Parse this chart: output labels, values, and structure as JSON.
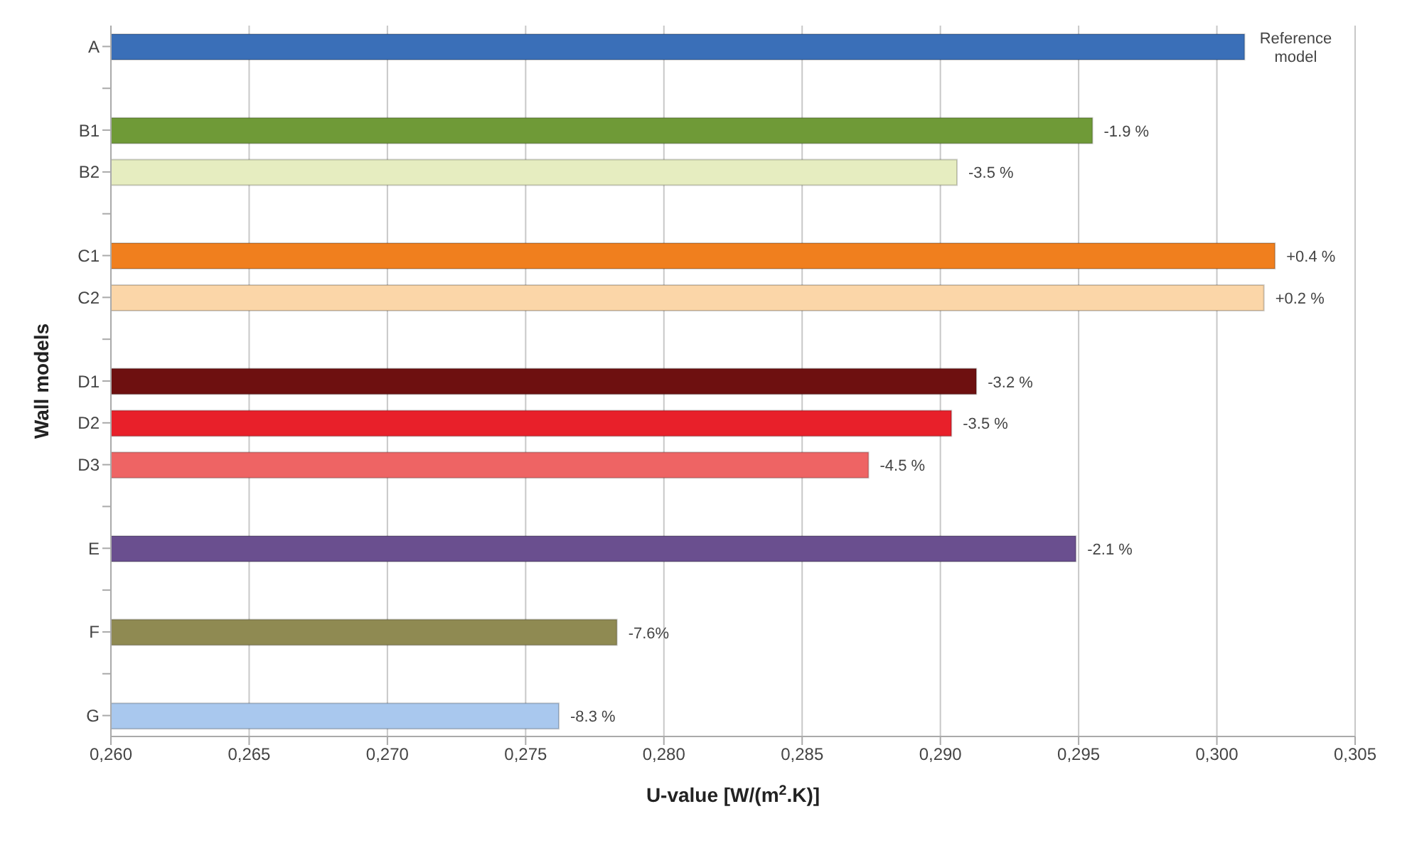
{
  "chart_data": {
    "type": "bar",
    "orientation": "horizontal",
    "xlabel": "U-value [W/(m$^{2}$.K)]",
    "ylabel": "Wall models",
    "categories": [
      "A",
      null,
      "B1",
      "B2",
      null,
      "C1",
      "C2",
      null,
      "D1",
      "D2",
      "D3",
      null,
      "E",
      null,
      "F",
      null,
      "G"
    ],
    "values": [
      0.301,
      null,
      0.2955,
      0.2906,
      null,
      0.3021,
      0.3017,
      null,
      0.2913,
      0.2904,
      0.2874,
      null,
      0.2949,
      null,
      0.2783,
      null,
      0.2762
    ],
    "colors": [
      "#3a6fb8",
      null,
      "#6f9a37",
      "#e6edc0",
      null,
      "#f07f1e",
      "#fbd6a8",
      null,
      "#6e1010",
      "#e8202a",
      "#ee6464",
      null,
      "#6a4f8f",
      null,
      "#8f8a52",
      null,
      "#a9c8ee"
    ],
    "annotations": [
      {
        "text": "Reference model",
        "x": 0.301,
        "y": "A"
      },
      {
        "text": "-1.9 %",
        "x": 0.2955,
        "y": "B1"
      },
      {
        "text": "-3.5 %",
        "x": 0.2906,
        "y": "B2"
      },
      {
        "text": "+0.4 %",
        "x": 0.3021,
        "y": "C1"
      },
      {
        "text": "+0.2 %",
        "x": 0.3017,
        "y": "C2"
      },
      {
        "text": "-3.2 %",
        "x": 0.2913,
        "y": "D1"
      },
      {
        "text": "-3.5 %",
        "x": 0.2904,
        "y": "D2"
      },
      {
        "text": "-4.5 %",
        "x": 0.2874,
        "y": "D3"
      },
      {
        "text": "-2.1 %",
        "x": 0.2949,
        "y": "E"
      },
      {
        "text": "-7.6%",
        "x": 0.2783,
        "y": "F"
      },
      {
        "text": "-8.3 %",
        "x": 0.2762,
        "y": "G"
      }
    ],
    "xlim": [
      0.26,
      0.305
    ],
    "xticks": [
      {
        "value": 0.26,
        "label": "0,260"
      },
      {
        "value": 0.265,
        "label": "0,265"
      },
      {
        "value": 0.27,
        "label": "0,270"
      },
      {
        "value": 0.275,
        "label": "0,275"
      },
      {
        "value": 0.28,
        "label": "0,280"
      },
      {
        "value": 0.285,
        "label": "0,285"
      },
      {
        "value": 0.29,
        "label": "0,290"
      },
      {
        "value": 0.295,
        "label": "0,295"
      },
      {
        "value": 0.3,
        "label": "0,300"
      },
      {
        "value": 0.305,
        "label": "0,305"
      }
    ],
    "grid": "x"
  }
}
